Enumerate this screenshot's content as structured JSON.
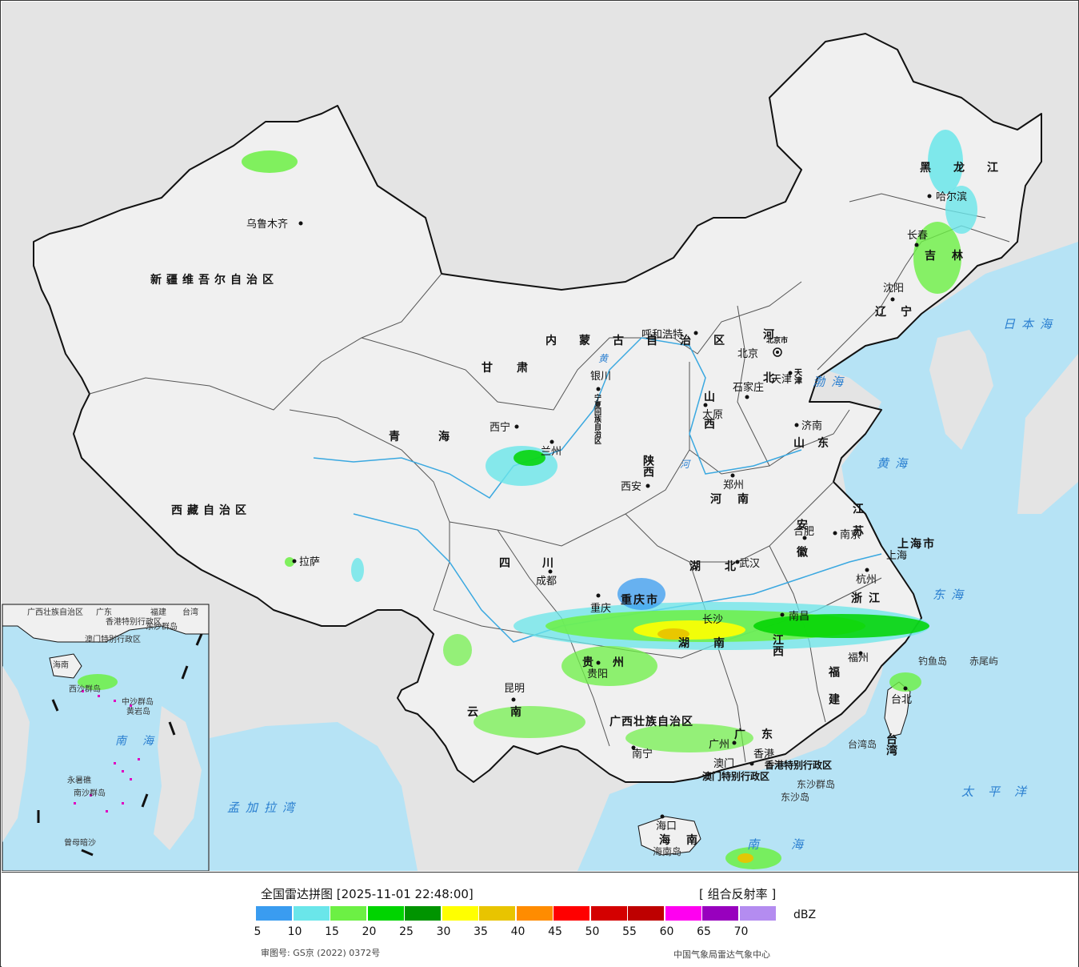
{
  "map": {
    "colors": {
      "sea": "#b6e3f5",
      "land_china": "#f0f0f0",
      "land_foreign": "#e4e4e4",
      "border": "#111111",
      "river": "#3aa8e0"
    },
    "province_labels": [
      {
        "text": "新疆维吾尔自治区"
      },
      {
        "text": "西藏自治区"
      },
      {
        "text": "青海"
      },
      {
        "text": "甘肃"
      },
      {
        "text": "四川"
      },
      {
        "text": "云南"
      },
      {
        "text": "陕西"
      },
      {
        "text": "山西"
      },
      {
        "text": "河南"
      },
      {
        "text": "湖北"
      },
      {
        "text": "湖南"
      },
      {
        "text": "江西"
      },
      {
        "text": "安徽"
      },
      {
        "text": "江苏"
      },
      {
        "text": "浙江"
      },
      {
        "text": "福建"
      },
      {
        "text": "广东"
      },
      {
        "text": "海南"
      },
      {
        "text": "河北"
      },
      {
        "text": "山东"
      },
      {
        "text": "辽宁"
      },
      {
        "text": "吉林"
      },
      {
        "text": "黑龙江"
      },
      {
        "text": "贵州"
      },
      {
        "text": "重庆市"
      },
      {
        "text": "上海市"
      },
      {
        "text": "台湾"
      },
      {
        "text": "天津"
      },
      {
        "text": "北京市"
      },
      {
        "text": "宁夏回族自治区"
      },
      {
        "text": "广西壮族自治区"
      },
      {
        "text": "香港特别行政区"
      },
      {
        "text": "澳门特别行政区"
      },
      {
        "text": "内蒙古自治区"
      }
    ],
    "cities": [
      {
        "text": "乌鲁木齐"
      },
      {
        "text": "拉萨"
      },
      {
        "text": "西宁"
      },
      {
        "text": "兰州"
      },
      {
        "text": "成都"
      },
      {
        "text": "重庆"
      },
      {
        "text": "昆明"
      },
      {
        "text": "贵阳"
      },
      {
        "text": "南宁"
      },
      {
        "text": "广州"
      },
      {
        "text": "香港"
      },
      {
        "text": "澳门"
      },
      {
        "text": "海口"
      },
      {
        "text": "西安"
      },
      {
        "text": "郑州"
      },
      {
        "text": "武汉"
      },
      {
        "text": "长沙"
      },
      {
        "text": "南昌"
      },
      {
        "text": "福州"
      },
      {
        "text": "台北"
      },
      {
        "text": "杭州"
      },
      {
        "text": "上海"
      },
      {
        "text": "南京"
      },
      {
        "text": "合肥"
      },
      {
        "text": "济南"
      },
      {
        "text": "太原"
      },
      {
        "text": "石家庄"
      },
      {
        "text": "北京"
      },
      {
        "text": "天津"
      },
      {
        "text": "呼和浩特"
      },
      {
        "text": "银川"
      },
      {
        "text": "沈阳"
      },
      {
        "text": "长春"
      },
      {
        "text": "哈尔滨"
      }
    ],
    "sea_labels": [
      {
        "text": "渤海"
      },
      {
        "text": "黄海"
      },
      {
        "text": "东海"
      },
      {
        "text": "南海"
      },
      {
        "text": "日本海"
      },
      {
        "text": "太平洋"
      },
      {
        "text": "孟加拉湾"
      }
    ],
    "islands": [
      {
        "text": "钓鱼岛"
      },
      {
        "text": "赤尾屿"
      },
      {
        "text": "台湾岛"
      },
      {
        "text": "东沙群岛"
      },
      {
        "text": "东沙岛"
      },
      {
        "text": "海南岛"
      }
    ],
    "river_labels": [
      {
        "text": "黄"
      },
      {
        "text": "河"
      }
    ]
  },
  "inset": {
    "labels": [
      {
        "text": "广西壮族自治区"
      },
      {
        "text": "广东"
      },
      {
        "text": "福建"
      },
      {
        "text": "台湾"
      },
      {
        "text": "香港特别行政区"
      },
      {
        "text": "澳门特别行政区"
      },
      {
        "text": "东沙群岛"
      },
      {
        "text": "海南"
      },
      {
        "text": "西沙群岛"
      },
      {
        "text": "中沙群岛"
      },
      {
        "text": "黄岩岛"
      },
      {
        "text": "南海"
      },
      {
        "text": "永暑礁"
      },
      {
        "text": "南沙群岛"
      },
      {
        "text": "曾母暗沙"
      }
    ]
  },
  "legend": {
    "title": "全国雷达拼图 [2025-11-01 22:48:00]",
    "product": "[ 组合反射率 ]",
    "unit": "dBZ",
    "colors": [
      "#3a9cf0",
      "#6ae6ea",
      "#6cf044",
      "#00d400",
      "#009400",
      "#ffff00",
      "#e8c400",
      "#ff8c00",
      "#ff0000",
      "#d40000",
      "#be0000",
      "#ff00f0",
      "#9800be",
      "#b48cf0"
    ],
    "ticks": [
      "5",
      "10",
      "15",
      "20",
      "25",
      "30",
      "35",
      "40",
      "45",
      "50",
      "55",
      "60",
      "65",
      "70"
    ],
    "approval": "审图号: GS京 (2022) 0372号",
    "source": "中国气象局雷达气象中心"
  }
}
